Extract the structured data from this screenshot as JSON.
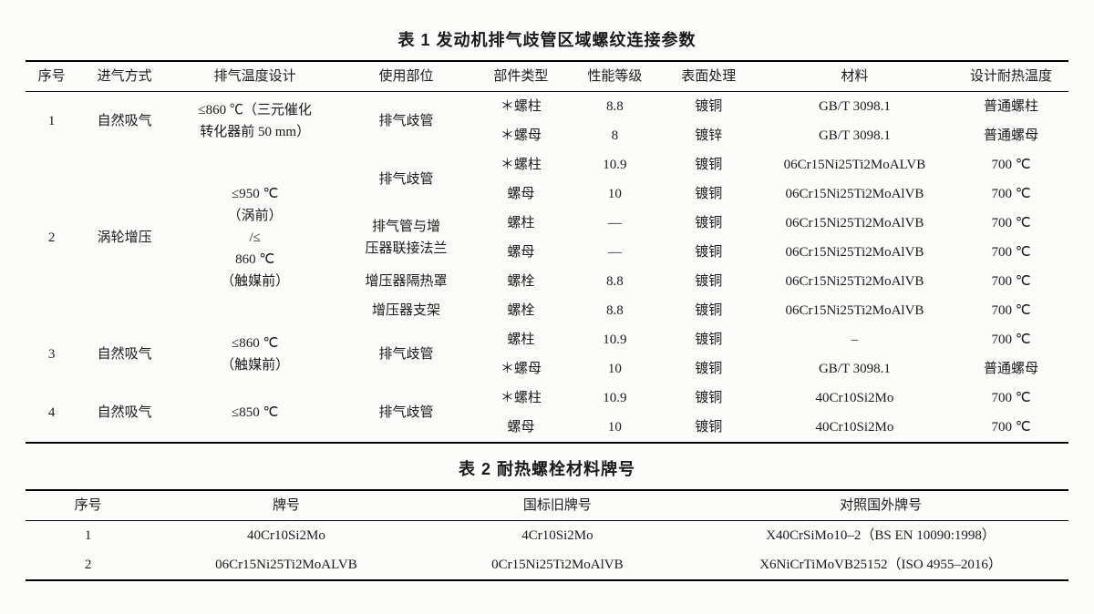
{
  "table1": {
    "title": "表 1  发动机排气歧管区域螺纹连接参数",
    "headers": [
      "序号",
      "进气方式",
      "排气温度设计",
      "使用部位",
      "部件类型",
      "性能等级",
      "表面处理",
      "材料",
      "设计耐热温度"
    ],
    "colWidths": [
      "5%",
      "9%",
      "16%",
      "13%",
      "9%",
      "9%",
      "9%",
      "19%",
      "11%"
    ],
    "groups": [
      {
        "seq": "1",
        "intake": "自然吸气",
        "tempLines": [
          "≤860 ℃（三元催化",
          "转化器前 50 mm）"
        ],
        "rows": [
          {
            "loc": "排气歧管",
            "locSpan": 2,
            "type": "＊螺柱",
            "grade": "8.8",
            "surf": "镀铜",
            "mat": "GB/T 3098.1",
            "dt": "普通螺柱"
          },
          {
            "type": "＊螺母",
            "grade": "8",
            "surf": "镀锌",
            "mat": "GB/T 3098.1",
            "dt": "普通螺母"
          }
        ]
      },
      {
        "seq": "2",
        "intake": "涡轮增压",
        "tempLines": [
          "≤950 ℃",
          "（涡前）",
          "/≤",
          "860 ℃",
          "（触媒前）"
        ],
        "rows": [
          {
            "loc": "排气歧管",
            "locSpan": 2,
            "type": "＊螺柱",
            "grade": "10.9",
            "surf": "镀铜",
            "mat": "06Cr15Ni25Ti2MoALVB",
            "dt": "700 ℃"
          },
          {
            "type": "螺母",
            "grade": "10",
            "surf": "镀铜",
            "mat": "06Cr15Ni25Ti2MoAlVB",
            "dt": "700 ℃"
          },
          {
            "locLines": [
              "排气管与增",
              "压器联接法兰"
            ],
            "locSpan": 2,
            "type": "螺柱",
            "grade": "—",
            "surf": "镀铜",
            "mat": "06Cr15Ni25Ti2MoAlVB",
            "dt": "700 ℃"
          },
          {
            "type": "螺母",
            "grade": "—",
            "surf": "镀铜",
            "mat": "06Cr15Ni25Ti2MoAlVB",
            "dt": "700 ℃"
          },
          {
            "loc": "增压器隔热罩",
            "locSpan": 1,
            "type": "螺栓",
            "grade": "8.8",
            "surf": "镀铜",
            "mat": "06Cr15Ni25Ti2MoAlVB",
            "dt": "700 ℃"
          },
          {
            "loc": "增压器支架",
            "locSpan": 1,
            "type": "螺栓",
            "grade": "8.8",
            "surf": "镀铜",
            "mat": "06Cr15Ni25Ti2MoAlVB",
            "dt": "700 ℃"
          }
        ]
      },
      {
        "seq": "3",
        "intake": "自然吸气",
        "tempLines": [
          "≤860 ℃",
          "（触媒前）"
        ],
        "rows": [
          {
            "loc": "排气歧管",
            "locSpan": 2,
            "type": "螺柱",
            "grade": "10.9",
            "surf": "镀铜",
            "mat": "–",
            "dt": "700 ℃"
          },
          {
            "type": "＊螺母",
            "grade": "10",
            "surf": "镀铜",
            "mat": "GB/T 3098.1",
            "dt": "普通螺母"
          }
        ]
      },
      {
        "seq": "4",
        "intake": "自然吸气",
        "tempLines": [
          "≤850 ℃"
        ],
        "rows": [
          {
            "loc": "排气歧管",
            "locSpan": 2,
            "type": "＊螺柱",
            "grade": "10.9",
            "surf": "镀铜",
            "mat": "40Cr10Si2Mo",
            "dt": "700 ℃"
          },
          {
            "type": "螺母",
            "grade": "10",
            "surf": "镀铜",
            "mat": "40Cr10Si2Mo",
            "dt": "700 ℃"
          }
        ]
      }
    ]
  },
  "table2": {
    "title": "表 2  耐热螺栓材料牌号",
    "headers": [
      "序号",
      "牌号",
      "国标旧牌号",
      "对照国外牌号"
    ],
    "colWidths": [
      "12%",
      "26%",
      "26%",
      "36%"
    ],
    "rows": [
      {
        "seq": "1",
        "mark": "40Cr10Si2Mo",
        "old": "4Cr10Si2Mo",
        "foreign": "X40CrSiMo10–2（BS EN 10090:1998）"
      },
      {
        "seq": "2",
        "mark": "06Cr15Ni25Ti2MoALVB",
        "old": "0Cr15Ni25Ti2MoAlVB",
        "foreign": "X6NiCrTiMoVB25152（ISO 4955–2016）"
      }
    ]
  }
}
